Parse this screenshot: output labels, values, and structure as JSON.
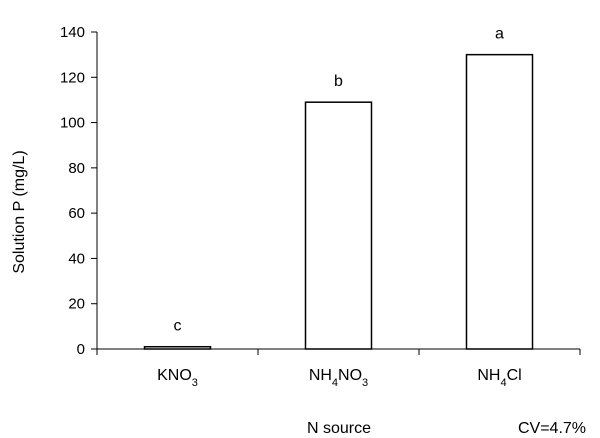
{
  "chart_data": {
    "type": "bar",
    "title": "",
    "xlabel": "N source",
    "ylabel": "Solution P (mg/L)",
    "ylim": [
      0,
      140
    ],
    "yticks": [
      0,
      20,
      40,
      60,
      80,
      100,
      120,
      140
    ],
    "categories": [
      {
        "base": "KNO",
        "sub": "3",
        "tail": ""
      },
      {
        "base": "NH",
        "sub": "4",
        "tail": "NO",
        "sub2": "3"
      },
      {
        "base": "NH",
        "sub": "4",
        "tail": "Cl"
      }
    ],
    "values": [
      1,
      109,
      130
    ],
    "letters": [
      "c",
      "b",
      "a"
    ],
    "grid": false,
    "legend": "none",
    "bar_fill": "#ffffff",
    "bar_stroke": "#000000"
  },
  "note": "CV=4.7%"
}
